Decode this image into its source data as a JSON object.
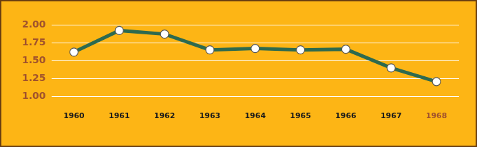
{
  "chart_data": {
    "type": "line",
    "categories": [
      "1960",
      "1961",
      "1962",
      "1963",
      "1964",
      "1965",
      "1966",
      "1967",
      "1968"
    ],
    "values": [
      1.62,
      1.92,
      1.87,
      1.65,
      1.67,
      1.65,
      1.66,
      1.4,
      1.21
    ],
    "color": "#2d6a4f",
    "marker": "circle",
    "line_style": "solid",
    "ylim": [
      1,
      2
    ],
    "yticks": [
      {
        "value": 1,
        "label": "1.00"
      },
      {
        "value": 1.25,
        "label": "1.25"
      },
      {
        "value": 1.5,
        "label": "1.50"
      },
      {
        "value": 1.75,
        "label": "1.75"
      },
      {
        "value": 2,
        "label": "2.00"
      }
    ],
    "grid": true
  }
}
